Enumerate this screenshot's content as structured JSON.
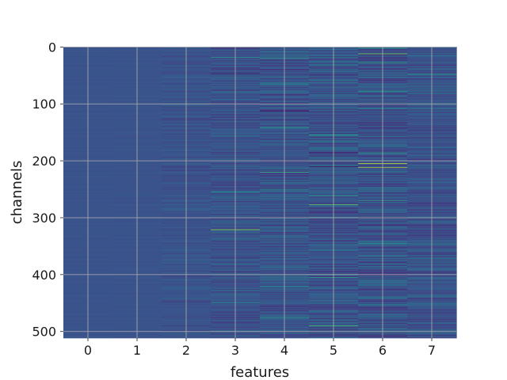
{
  "chart_data": {
    "type": "heatmap",
    "title": "",
    "xlabel": "features",
    "ylabel": "channels",
    "x_categories": [
      0,
      1,
      2,
      3,
      4,
      5,
      6,
      7
    ],
    "xlim": [
      -0.5,
      7.5
    ],
    "ylim": [
      511.5,
      -0.5
    ],
    "y_inverted": true,
    "x_ticks": [
      0,
      1,
      2,
      3,
      4,
      5,
      6,
      7
    ],
    "y_ticks": [
      0,
      100,
      200,
      300,
      400,
      500
    ],
    "n_channels": 512,
    "colormap": "viridis",
    "background_value_color": "#3b4d8c",
    "grid": true,
    "grid_color": "#b0b0b0",
    "notable_cells": [
      {
        "feature": 3,
        "channel": 18,
        "value": 0.55
      },
      {
        "feature": 3,
        "channel": 47,
        "value": 0.02
      },
      {
        "feature": 3,
        "channel": 255,
        "value": 0.5
      },
      {
        "feature": 3,
        "channel": 321,
        "value": 0.85
      },
      {
        "feature": 3,
        "channel": 450,
        "value": 0.45
      },
      {
        "feature": 4,
        "channel": 20,
        "value": 0.6
      },
      {
        "feature": 4,
        "channel": 65,
        "value": 0.5
      },
      {
        "feature": 4,
        "channel": 113,
        "value": 0.05
      },
      {
        "feature": 4,
        "channel": 141,
        "value": 0.55
      },
      {
        "feature": 4,
        "channel": 220,
        "value": 0.65
      },
      {
        "feature": 4,
        "channel": 250,
        "value": 0.5
      },
      {
        "feature": 4,
        "channel": 420,
        "value": 0.5
      },
      {
        "feature": 4,
        "channel": 475,
        "value": 0.55
      },
      {
        "feature": 5,
        "channel": 58,
        "value": 0.5
      },
      {
        "feature": 5,
        "channel": 155,
        "value": 0.55
      },
      {
        "feature": 5,
        "channel": 185,
        "value": 0.05
      },
      {
        "feature": 5,
        "channel": 210,
        "value": 0.02
      },
      {
        "feature": 5,
        "channel": 262,
        "value": 0.6
      },
      {
        "feature": 5,
        "channel": 277,
        "value": 0.75
      },
      {
        "feature": 5,
        "channel": 405,
        "value": 0.6
      },
      {
        "feature": 5,
        "channel": 490,
        "value": 0.7
      },
      {
        "feature": 6,
        "channel": 2,
        "value": 0.6
      },
      {
        "feature": 6,
        "channel": 12,
        "value": 0.8
      },
      {
        "feature": 6,
        "channel": 28,
        "value": 0.6
      },
      {
        "feature": 6,
        "channel": 78,
        "value": 0.55
      },
      {
        "feature": 6,
        "channel": 108,
        "value": 0.5
      },
      {
        "feature": 6,
        "channel": 186,
        "value": 0.55
      },
      {
        "feature": 6,
        "channel": 205,
        "value": 0.95
      },
      {
        "feature": 6,
        "channel": 212,
        "value": 0.9
      },
      {
        "feature": 6,
        "channel": 270,
        "value": 0.6
      },
      {
        "feature": 6,
        "channel": 345,
        "value": 0.55
      },
      {
        "feature": 6,
        "channel": 500,
        "value": 0.5
      },
      {
        "feature": 7,
        "channel": 48,
        "value": 0.55
      },
      {
        "feature": 7,
        "channel": 82,
        "value": 0.5
      },
      {
        "feature": 7,
        "channel": 378,
        "value": 0.5
      },
      {
        "feature": 7,
        "channel": 400,
        "value": 0.5
      }
    ]
  }
}
